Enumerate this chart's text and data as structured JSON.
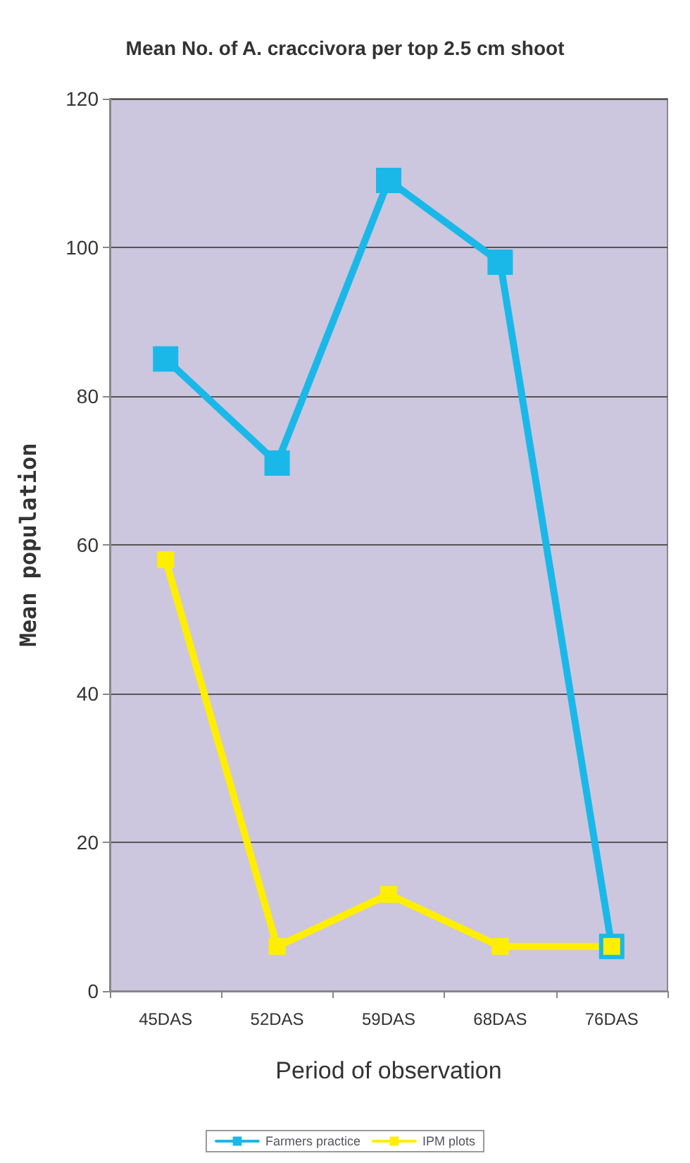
{
  "chart_data": {
    "type": "line",
    "title": "Mean No. of A. craccivora per top 2.5 cm shoot",
    "xlabel": "Period of observation",
    "ylabel": "Mean population",
    "categories": [
      "45DAS",
      "52DAS",
      "59DAS",
      "68DAS",
      "76DAS"
    ],
    "series": [
      {
        "name": "Farmers practice",
        "color": "#1ab8e8",
        "values": [
          85,
          71,
          109,
          98,
          6
        ]
      },
      {
        "name": "IPM plots",
        "color": "#ffee00",
        "values": [
          58,
          6,
          13,
          6,
          6
        ]
      }
    ],
    "ylim": [
      0,
      120
    ],
    "yticks": [
      0,
      20,
      40,
      60,
      80,
      100,
      120
    ],
    "grid": "y",
    "legend": "bottom",
    "marker": "square",
    "line_style": "solid"
  }
}
